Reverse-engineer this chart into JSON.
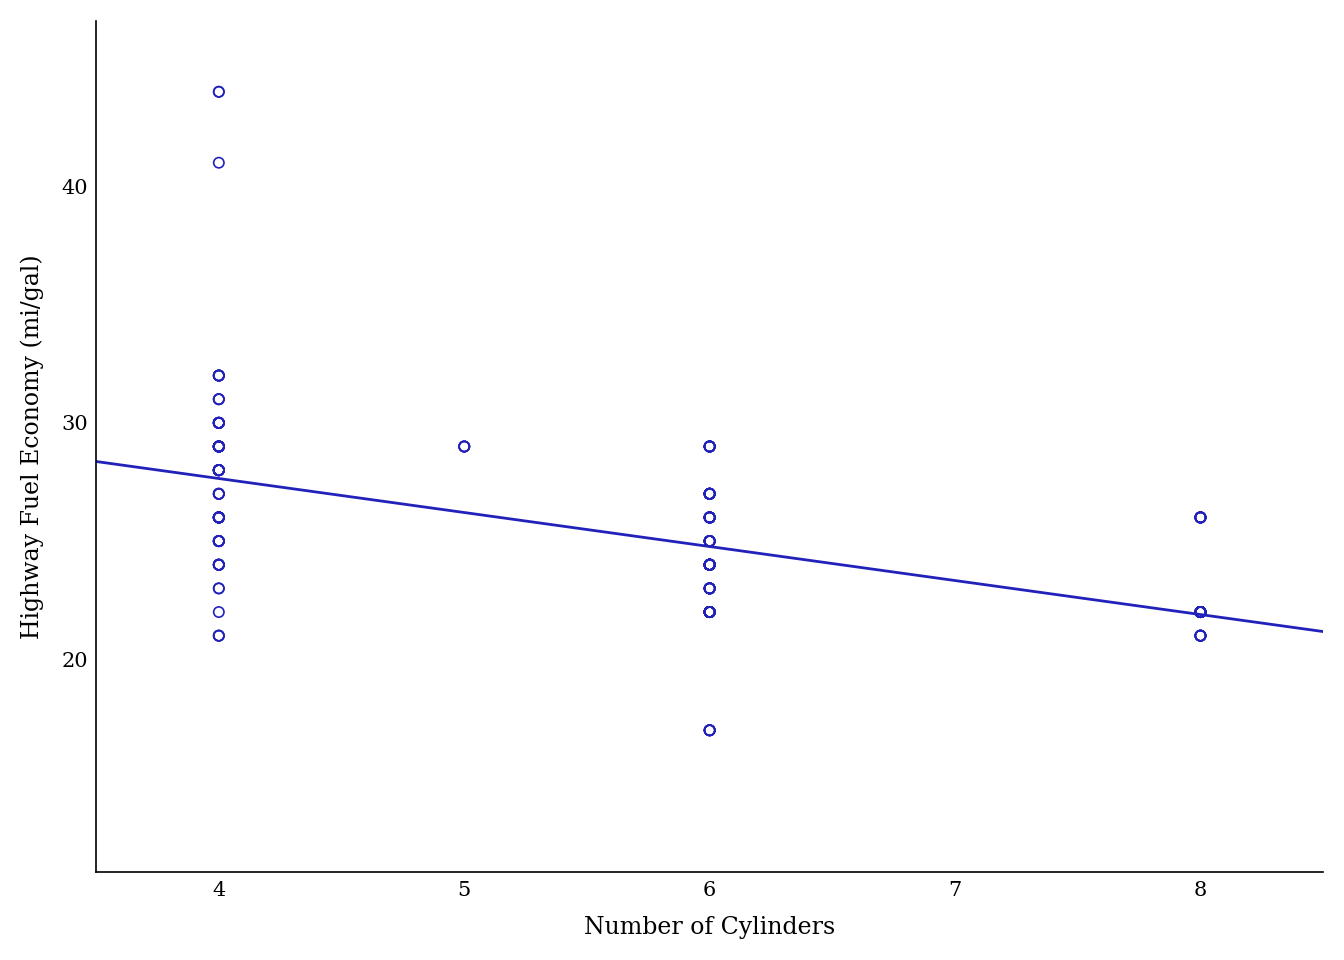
{
  "cyl": [
    4,
    4,
    4,
    4,
    4,
    4,
    4,
    4,
    4,
    4,
    4,
    4,
    4,
    4,
    4,
    4,
    4,
    4,
    4,
    4,
    4,
    4,
    4,
    4,
    4,
    4,
    4,
    4,
    4,
    4,
    4,
    4,
    4,
    4,
    4,
    4,
    4,
    4,
    4,
    4,
    4,
    4,
    4,
    4,
    4,
    4,
    4,
    4,
    4,
    4,
    4,
    4,
    4,
    4,
    4,
    4,
    4,
    4,
    4,
    4,
    4,
    4,
    4,
    4,
    4,
    4,
    4,
    4,
    4,
    4,
    4,
    4,
    4,
    4,
    4,
    4,
    4,
    4,
    4,
    4,
    4,
    5,
    5,
    5,
    5,
    6,
    6,
    6,
    6,
    6,
    6,
    6,
    6,
    6,
    6,
    6,
    6,
    6,
    6,
    6,
    6,
    6,
    6,
    6,
    6,
    6,
    6,
    6,
    6,
    6,
    6,
    6,
    6,
    6,
    6,
    6,
    6,
    6,
    6,
    6,
    6,
    6,
    6,
    6,
    6,
    6,
    6,
    6,
    6,
    6,
    6,
    6,
    6,
    6,
    6,
    6,
    6,
    6,
    6,
    6,
    6,
    6,
    6,
    6,
    6,
    6,
    6,
    6,
    6,
    6,
    6,
    6,
    6,
    6,
    6,
    6,
    6,
    6,
    6,
    6,
    6,
    6,
    6,
    6,
    6,
    6,
    6,
    6,
    6,
    6,
    6,
    6,
    6,
    6,
    6,
    6,
    6,
    6,
    6,
    6,
    6,
    6,
    6,
    6,
    6,
    8,
    8,
    8,
    8,
    8,
    8,
    8,
    8,
    8,
    8,
    8,
    8,
    8,
    8,
    8,
    8,
    8,
    8,
    8,
    8,
    8,
    8,
    8,
    8,
    8,
    8,
    8,
    8,
    8,
    8,
    8,
    8,
    8,
    8,
    8,
    8,
    8,
    8,
    8,
    8,
    8,
    8,
    8,
    8,
    8,
    8,
    8,
    8,
    8
  ],
  "hwy": [
    29,
    29,
    31,
    44,
    44,
    41,
    29,
    26,
    28,
    26,
    27,
    25,
    25,
    25,
    25,
    29,
    27,
    29,
    28,
    31,
    32,
    32,
    31,
    29,
    27,
    25,
    29,
    29,
    26,
    29,
    24,
    28,
    29,
    29,
    29,
    24,
    28,
    29,
    26,
    26,
    30,
    30,
    30,
    30,
    32,
    30,
    32,
    32,
    28,
    26,
    29,
    29,
    26,
    26,
    27,
    30,
    30,
    28,
    28,
    28,
    28,
    30,
    30,
    28,
    28,
    26,
    26,
    26,
    26,
    24,
    24,
    25,
    25,
    24,
    24,
    23,
    23,
    22,
    21,
    21,
    21,
    29,
    29,
    29,
    29,
    24,
    23,
    29,
    29,
    29,
    29,
    29,
    29,
    27,
    27,
    27,
    24,
    24,
    24,
    24,
    24,
    24,
    24,
    22,
    22,
    22,
    22,
    24,
    23,
    23,
    25,
    25,
    25,
    25,
    25,
    25,
    23,
    24,
    24,
    24,
    24,
    24,
    24,
    24,
    25,
    27,
    27,
    27,
    27,
    25,
    29,
    25,
    27,
    27,
    29,
    27,
    23,
    27,
    26,
    26,
    26,
    26,
    26,
    26,
    26,
    26,
    24,
    24,
    24,
    24,
    24,
    24,
    22,
    23,
    22,
    22,
    22,
    22,
    22,
    22,
    22,
    23,
    23,
    26,
    22,
    22,
    22,
    22,
    22,
    22,
    17,
    17,
    17,
    17,
    17,
    26,
    26,
    22,
    22,
    22,
    22,
    22,
    22,
    22,
    22,
    22,
    22,
    22,
    22,
    22,
    22,
    22,
    22,
    22,
    22,
    22,
    22,
    22,
    22,
    22,
    22,
    21,
    21,
    21,
    21,
    21,
    21,
    22,
    22,
    22,
    22,
    22,
    22,
    22,
    22,
    22,
    22,
    22,
    22,
    22,
    22,
    22,
    22,
    22,
    22,
    22,
    26,
    26,
    26,
    26,
    26,
    26,
    26,
    26
  ],
  "point_color": "#2222bb",
  "line_color": "#2222bb",
  "xlabel": "Number of Cylinders",
  "ylabel": "Highway Fuel Economy (mi/gal)",
  "xlim": [
    3.5,
    8.5
  ],
  "ylim": [
    11,
    47
  ],
  "xticks": [
    4,
    5,
    6,
    7,
    8
  ],
  "yticks": [
    20,
    30,
    40
  ],
  "marker_size": 55,
  "marker_linewidth": 1.2,
  "line_linewidth": 2.0,
  "background_color": "#ffffff",
  "xlabel_fontsize": 17,
  "ylabel_fontsize": 17,
  "tick_fontsize": 15,
  "spine_linewidth": 1.2
}
